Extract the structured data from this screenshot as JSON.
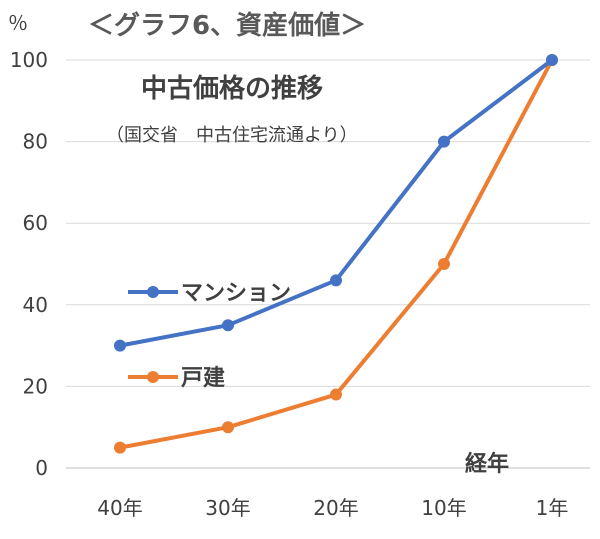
{
  "chart_data": {
    "type": "line",
    "title": "＜グラフ6、資産価値＞",
    "subtitle": "中古価格の推移",
    "source_note": "（国交省　中古住宅流通より）",
    "ylabel": "％",
    "xlabel": "経年",
    "categories": [
      "40年",
      "30年",
      "20年",
      "10年",
      "1年"
    ],
    "ylim": [
      0,
      100
    ],
    "yticks": [
      0,
      20,
      40,
      60,
      80,
      100
    ],
    "grid": true,
    "legend_placement": "inside-left",
    "series": [
      {
        "name": "マンション",
        "color": "#4472C4",
        "values": [
          30,
          35,
          46,
          80,
          100
        ]
      },
      {
        "name": "戸建",
        "color": "#ED7D31",
        "values": [
          5,
          10,
          18,
          50,
          100
        ]
      }
    ]
  }
}
